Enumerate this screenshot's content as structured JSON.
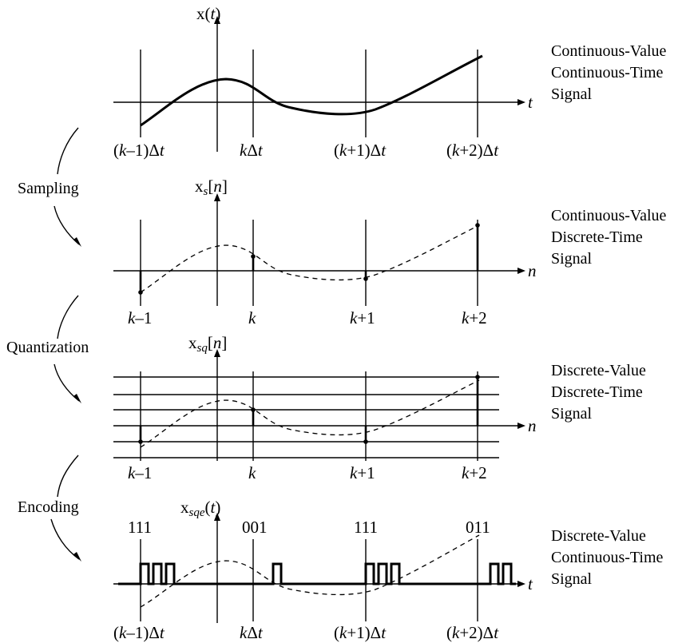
{
  "panels": [
    {
      "axis_label": {
        "main": "x",
        "open": "(",
        "arg": "t",
        "close": ")",
        "sub": ""
      },
      "axis_var": "t",
      "ticks": [
        {
          "a": "(",
          "b": "k",
          "c": "–1)",
          "d": "Δ",
          "e": "t"
        },
        {
          "a": "",
          "b": "k",
          "c": "",
          "d": "Δ",
          "e": "t"
        },
        {
          "a": "(",
          "b": "k",
          "c": "+1)",
          "d": "Δ",
          "e": "t"
        },
        {
          "a": "(",
          "b": "k",
          "c": "+2)",
          "d": "Δ",
          "e": "t"
        }
      ],
      "description": [
        "Continuous-Value",
        "Continuous-Time",
        "Signal"
      ]
    },
    {
      "axis_label": {
        "main": "x",
        "sub": "s",
        "open": "[",
        "arg": "n",
        "close": "]"
      },
      "axis_var": "n",
      "ticks": [
        {
          "b": "k",
          "c": "–1"
        },
        {
          "b": "k",
          "c": ""
        },
        {
          "b": "k",
          "c": "+1"
        },
        {
          "b": "k",
          "c": "+2"
        }
      ],
      "description": [
        "Continuous-Value",
        "Discrete-Time",
        "Signal"
      ]
    },
    {
      "axis_label": {
        "main": "x",
        "sub": "sq",
        "open": "[",
        "arg": "n",
        "close": "]"
      },
      "axis_var": "n",
      "ticks": [
        {
          "b": "k",
          "c": "–1"
        },
        {
          "b": "k",
          "c": ""
        },
        {
          "b": "k",
          "c": "+1"
        },
        {
          "b": "k",
          "c": "+2"
        }
      ],
      "description": [
        "Discrete-Value",
        "Discrete-Time",
        "Signal"
      ]
    },
    {
      "axis_label": {
        "main": "x",
        "sub": "sqe",
        "open": "(",
        "arg": "t",
        "close": ")"
      },
      "axis_var": "t",
      "codes": [
        "111",
        "001",
        "111",
        "011"
      ],
      "ticks": [
        {
          "a": "(",
          "b": "k",
          "c": "–1)",
          "d": "Δ",
          "e": "t"
        },
        {
          "a": "",
          "b": "k",
          "c": "",
          "d": "Δ",
          "e": "t"
        },
        {
          "a": "(",
          "b": "k",
          "c": "+1)",
          "d": "Δ",
          "e": "t"
        },
        {
          "a": "(",
          "b": "k",
          "c": "+2)",
          "d": "Δ",
          "e": "t"
        }
      ],
      "description": [
        "Discrete-Value",
        "Continuous-Time",
        "Signal"
      ]
    }
  ],
  "steps": [
    "Sampling",
    "Quantization",
    "Encoding"
  ]
}
